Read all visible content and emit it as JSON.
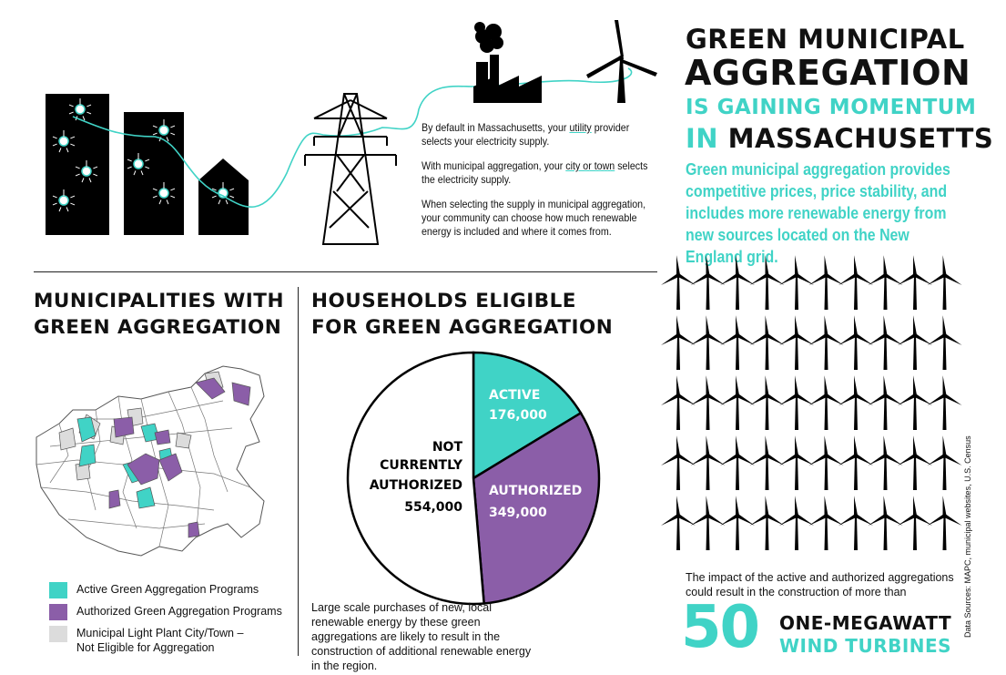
{
  "header": {
    "title_line1": "GREEN MUNICIPAL",
    "title_line2": "AGGREGATION",
    "title_line3": "IS GAINING MOMENTUM",
    "title_line4_prefix": "IN",
    "title_line4_main": "MASSACHUSETTS",
    "intro": "Green municipal aggregation provides competitive prices, price stability, and includes more renewable energy from new sources located on the New England grid."
  },
  "blurb": {
    "p1_a": "By default in Massachusetts, your ",
    "p1_link": "utility",
    "p1_b": " provider selects your electricity supply.",
    "p2_a": "With municipal aggregation, your ",
    "p2_link": "city or town",
    "p2_b": " selects the electricity supply.",
    "p3": "When selecting the supply in municipal aggregation, your community can choose how much renewable energy is included and where it comes from."
  },
  "map_section": {
    "title_line1": "MUNICIPALITIES WITH",
    "title_line2": "GREEN AGGREGATION",
    "legend": [
      {
        "label": "Active Green Aggregation Programs",
        "color": "#40d3c6"
      },
      {
        "label": "Authorized Green Aggregation Programs",
        "color": "#8b5ea8"
      },
      {
        "label": "Municipal Light Plant City/Town –",
        "label2": "Not Eligible for Aggregation",
        "color": "#dcdcdc"
      }
    ]
  },
  "households": {
    "title_line1": "HOUSEHOLDS ELIGIBLE",
    "title_line2": "FOR GREEN AGGREGATION",
    "note": "Large scale purchases of new, local renewable energy by these green aggregations are likely to result in the construction of additional renewable energy in the region."
  },
  "chart_data": {
    "type": "pie",
    "slices": [
      {
        "name": "ACTIVE",
        "value": 176000,
        "label": "176,000",
        "color": "#40d3c6"
      },
      {
        "name": "AUTHORIZED",
        "value": 349000,
        "label": "349,000",
        "color": "#8b5ea8"
      },
      {
        "name": "NOT CURRENTLY AUTHORIZED",
        "value": 554000,
        "label": "554,000",
        "color": "#ffffff"
      }
    ],
    "title": "HOUSEHOLDS ELIGIBLE FOR GREEN AGGREGATION"
  },
  "pie_labels": {
    "active": "ACTIVE",
    "active_value": "176,000",
    "authorized": "AUTHORIZED",
    "authorized_value": "349,000",
    "not_1": "NOT",
    "not_2": "CURRENTLY",
    "not_3": "AUTHORIZED",
    "not_value": "554,000"
  },
  "turbines": {
    "impact": "The impact of the active and authorized aggregations could result in the construction of more than",
    "count": "50",
    "unit_line1": "ONE-MEGAWATT",
    "unit_line2": "WIND TURBINES",
    "grid_count": 50
  },
  "source": "Data Sources: MAPC, municipal websites, U.S. Census",
  "colors": {
    "teal": "#40d3c6",
    "purple": "#8b5ea8",
    "gray": "#dcdcdc"
  }
}
